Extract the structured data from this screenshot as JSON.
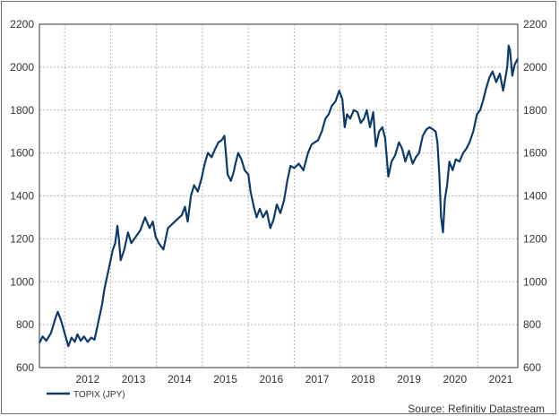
{
  "colors": {
    "series": "#0f3a66",
    "grid": "#b8b8b8",
    "axis": "#333333",
    "border": "#6f6f6f"
  },
  "source": "Source: Refinitiv Datastream",
  "chart_data": {
    "type": "line",
    "title": "",
    "xlabel": "",
    "ylabel": "",
    "ylim": [
      600,
      2200
    ],
    "xlim": [
      2011.45,
      2021.87
    ],
    "y_ticks": [
      "600",
      "800",
      "1000",
      "1200",
      "1400",
      "1600",
      "1800",
      "2000",
      "2200"
    ],
    "x_tick_labels": [
      "2012",
      "2013",
      "2014",
      "2015",
      "2016",
      "2017",
      "2018",
      "2019",
      "2020",
      "2021"
    ],
    "grid": true,
    "legend_position": "bottom-left",
    "series": [
      {
        "name": "TOPIX (JPY)",
        "x": [
          2011.45,
          2011.52,
          2011.6,
          2011.7,
          2011.8,
          2011.85,
          2011.92,
          2012.0,
          2012.08,
          2012.15,
          2012.22,
          2012.28,
          2012.35,
          2012.42,
          2012.5,
          2012.58,
          2012.65,
          2012.72,
          2012.78,
          2012.82,
          2012.86,
          2012.9,
          2012.95,
          2013.0,
          2013.05,
          2013.1,
          2013.15,
          2013.18,
          2013.22,
          2013.3,
          2013.38,
          2013.45,
          2013.55,
          2013.65,
          2013.75,
          2013.85,
          2013.92,
          2013.98,
          2014.05,
          2014.15,
          2014.25,
          2014.35,
          2014.45,
          2014.55,
          2014.62,
          2014.68,
          2014.75,
          2014.82,
          2014.9,
          2014.98,
          2015.05,
          2015.12,
          2015.2,
          2015.28,
          2015.35,
          2015.42,
          2015.48,
          2015.55,
          2015.62,
          2015.68,
          2015.72,
          2015.78,
          2015.85,
          2015.92,
          2016.0,
          2016.05,
          2016.12,
          2016.18,
          2016.25,
          2016.32,
          2016.4,
          2016.48,
          2016.55,
          2016.62,
          2016.7,
          2016.78,
          2016.85,
          2016.92,
          2017.0,
          2017.1,
          2017.2,
          2017.3,
          2017.38,
          2017.45,
          2017.52,
          2017.6,
          2017.68,
          2017.75,
          2017.82,
          2017.9,
          2017.98,
          2018.05,
          2018.1,
          2018.15,
          2018.22,
          2018.3,
          2018.38,
          2018.45,
          2018.52,
          2018.58,
          2018.65,
          2018.72,
          2018.78,
          2018.85,
          2018.92,
          2018.98,
          2019.05,
          2019.12,
          2019.2,
          2019.28,
          2019.35,
          2019.42,
          2019.5,
          2019.58,
          2019.65,
          2019.72,
          2019.8,
          2019.88,
          2019.95,
          2020.02,
          2020.08,
          2020.12,
          2020.16,
          2020.2,
          2020.24,
          2020.28,
          2020.33,
          2020.38,
          2020.45,
          2020.52,
          2020.6,
          2020.68,
          2020.75,
          2020.82,
          2020.9,
          2020.98,
          2021.05,
          2021.12,
          2021.18,
          2021.25,
          2021.32,
          2021.4,
          2021.48,
          2021.55,
          2021.6,
          2021.64,
          2021.67,
          2021.7,
          2021.75,
          2021.8,
          2021.87
        ],
        "values": [
          715,
          745,
          725,
          760,
          830,
          860,
          820,
          760,
          700,
          740,
          720,
          755,
          725,
          745,
          720,
          740,
          730,
          800,
          860,
          900,
          960,
          1000,
          1050,
          1100,
          1150,
          1180,
          1260,
          1200,
          1100,
          1150,
          1230,
          1180,
          1210,
          1240,
          1300,
          1250,
          1280,
          1210,
          1180,
          1150,
          1250,
          1270,
          1290,
          1310,
          1350,
          1280,
          1400,
          1450,
          1420,
          1480,
          1550,
          1600,
          1580,
          1620,
          1650,
          1660,
          1680,
          1500,
          1470,
          1510,
          1550,
          1600,
          1570,
          1520,
          1500,
          1420,
          1350,
          1300,
          1340,
          1300,
          1330,
          1250,
          1290,
          1360,
          1320,
          1380,
          1470,
          1540,
          1530,
          1550,
          1520,
          1600,
          1640,
          1650,
          1660,
          1700,
          1760,
          1780,
          1820,
          1840,
          1890,
          1850,
          1720,
          1780,
          1760,
          1800,
          1790,
          1740,
          1760,
          1800,
          1720,
          1790,
          1630,
          1700,
          1720,
          1670,
          1490,
          1560,
          1590,
          1650,
          1620,
          1560,
          1610,
          1550,
          1580,
          1600,
          1680,
          1710,
          1720,
          1710,
          1700,
          1650,
          1500,
          1300,
          1230,
          1380,
          1450,
          1560,
          1520,
          1570,
          1560,
          1600,
          1620,
          1650,
          1700,
          1780,
          1800,
          1850,
          1900,
          1950,
          1980,
          1930,
          1970,
          1890,
          1950,
          2000,
          2100,
          2080,
          1960,
          2010,
          2040
        ]
      }
    ]
  }
}
